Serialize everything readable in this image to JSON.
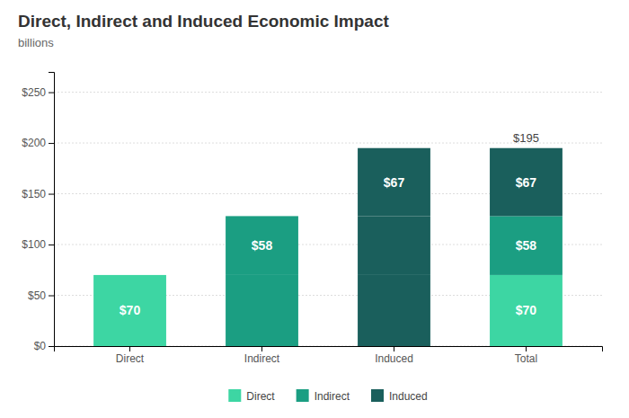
{
  "chart_data": {
    "type": "bar",
    "title": "Direct, Indirect and Induced Economic Impact",
    "subtitle": "billions",
    "stacked": true,
    "categories": [
      "Direct",
      "Indirect",
      "Induced",
      "Total"
    ],
    "series": [
      {
        "name": "Direct",
        "color": "#3DD6A3",
        "colors": [
          "#3DD6A3",
          "#1B9E82",
          "#1A5F5C",
          "#3DD6A3"
        ],
        "values": [
          70,
          70,
          70,
          70
        ],
        "value_labels": [
          "$70",
          null,
          null,
          "$70"
        ]
      },
      {
        "name": "Indirect",
        "color": "#1B9E82",
        "colors": [
          null,
          "#1B9E82",
          "#1A5F5C",
          "#1B9E82"
        ],
        "values": [
          null,
          58,
          58,
          58
        ],
        "value_labels": [
          null,
          "$58",
          null,
          "$58"
        ]
      },
      {
        "name": "Induced",
        "color": "#1A5F5C",
        "colors": [
          null,
          null,
          "#1A5F5C",
          "#1A5F5C"
        ],
        "values": [
          null,
          null,
          67,
          67
        ],
        "value_labels": [
          null,
          null,
          "$67",
          "$67"
        ]
      }
    ],
    "data_labels": true,
    "annotations": [
      {
        "text": "$195",
        "category": "Total",
        "value": 195
      }
    ],
    "ylim": [
      0,
      270
    ],
    "yticks": [
      {
        "value": 0,
        "label": "$0"
      },
      {
        "value": 50,
        "label": "$50"
      },
      {
        "value": 100,
        "label": "$100"
      },
      {
        "value": 150,
        "label": "$150"
      },
      {
        "value": 200,
        "label": "$200"
      },
      {
        "value": 250,
        "label": "$250"
      }
    ],
    "grid": true,
    "legend": "bottom"
  }
}
